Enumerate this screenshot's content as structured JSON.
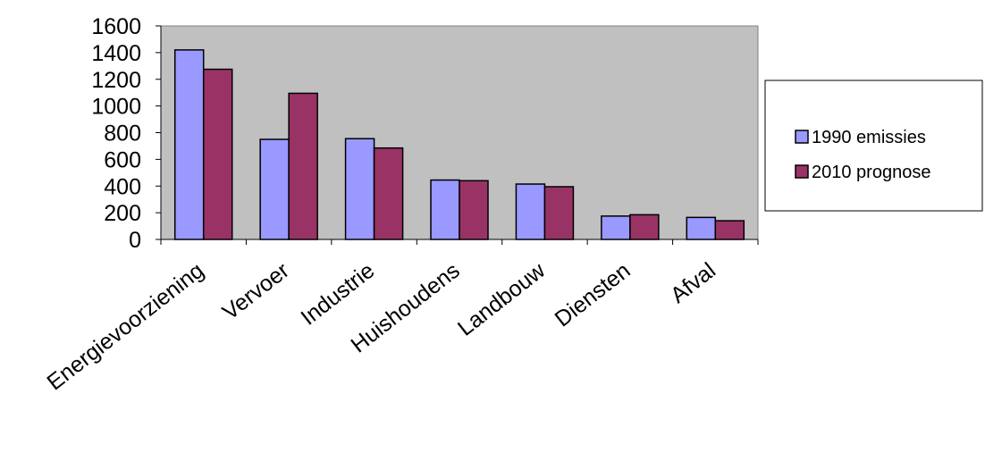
{
  "chart_data": {
    "type": "bar",
    "title": "",
    "xlabel": "",
    "ylabel": "",
    "categories": [
      "Energievoorziening",
      "Vervoer",
      "Industrie",
      "Huishoudens",
      "Landbouw",
      "Diensten",
      "Afval"
    ],
    "series": [
      {
        "name": "1990 emissies",
        "color": "#9999ff",
        "values": [
          1420,
          750,
          755,
          445,
          415,
          175,
          165
        ]
      },
      {
        "name": "2010 prognose",
        "color": "#993366",
        "values": [
          1275,
          1095,
          685,
          440,
          395,
          185,
          140
        ]
      }
    ],
    "ylim": [
      0,
      1600
    ],
    "yticks": [
      0,
      200,
      400,
      600,
      800,
      1000,
      1200,
      1400,
      1600
    ],
    "grid": false,
    "plot_background": "#c0c0c0",
    "legend_position": "right"
  }
}
